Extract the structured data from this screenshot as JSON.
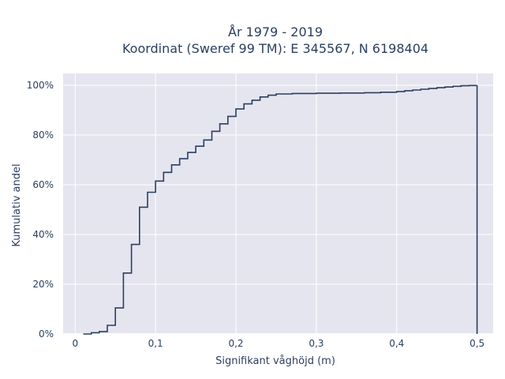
{
  "chart_data": {
    "type": "line",
    "line_shape": "step",
    "title_line1": "År 1979 - 2019",
    "title_line2": "Koordinat (Sweref 99 TM): E 345567, N 6198404",
    "xlabel": "Signifikant våghöjd (m)",
    "ylabel": "Kumulativ andel",
    "xlim": [
      -0.015,
      0.52
    ],
    "ylim": [
      0,
      1.0
    ],
    "x_ticks": [
      0,
      0.1,
      0.2,
      0.3,
      0.4,
      0.5
    ],
    "x_tick_labels": [
      "0",
      "0,1",
      "0,2",
      "0,3",
      "0,4",
      "0,5"
    ],
    "y_ticks": [
      0,
      0.2,
      0.4,
      0.6,
      0.8,
      1.0
    ],
    "y_tick_labels": [
      "0%",
      "20%",
      "40%",
      "60%",
      "80%",
      "100%"
    ],
    "grid": true,
    "colors": {
      "background": "#e5e5f0",
      "grid": "#ffffff",
      "line": "#2a3f5f"
    },
    "series": [
      {
        "x": [
          0.01,
          0.02,
          0.03,
          0.04,
          0.05,
          0.06,
          0.07,
          0.08,
          0.09,
          0.1,
          0.11,
          0.12,
          0.13,
          0.14,
          0.15,
          0.16,
          0.17,
          0.18,
          0.19,
          0.2,
          0.21,
          0.22,
          0.23,
          0.24,
          0.25,
          0.27,
          0.3,
          0.33,
          0.36,
          0.38,
          0.4,
          0.41,
          0.42,
          0.43,
          0.44,
          0.45,
          0.46,
          0.47,
          0.48,
          0.49,
          0.5,
          0.5
        ],
        "y": [
          0.0,
          0.005,
          0.01,
          0.035,
          0.105,
          0.245,
          0.36,
          0.51,
          0.57,
          0.615,
          0.65,
          0.68,
          0.705,
          0.73,
          0.755,
          0.78,
          0.815,
          0.845,
          0.875,
          0.905,
          0.925,
          0.94,
          0.953,
          0.96,
          0.965,
          0.967,
          0.968,
          0.969,
          0.97,
          0.972,
          0.975,
          0.978,
          0.981,
          0.984,
          0.987,
          0.99,
          0.993,
          0.996,
          0.998,
          0.999,
          1.0,
          0.0
        ]
      }
    ]
  }
}
